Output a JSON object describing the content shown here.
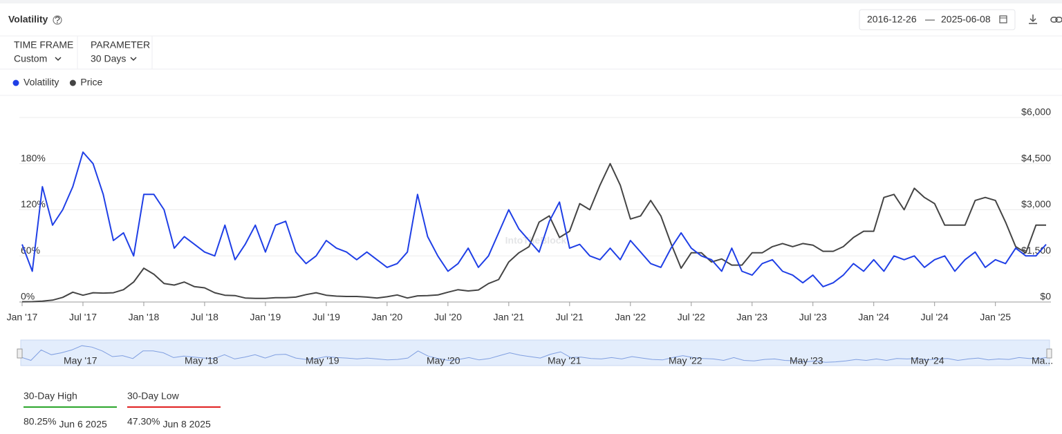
{
  "header": {
    "title": "Volatility",
    "date_from": "2016-12-26",
    "date_separator": "—",
    "date_to": "2025-06-08"
  },
  "controls": [
    {
      "label": "TIME FRAME",
      "value": "Custom"
    },
    {
      "label": "PARAMETER",
      "value": "30 Days"
    }
  ],
  "watermark": "IntoTheBlock",
  "chart_data": {
    "type": "line",
    "x": [
      "2017-01",
      "2017-02",
      "2017-03",
      "2017-04",
      "2017-05",
      "2017-06",
      "2017-07",
      "2017-08",
      "2017-09",
      "2017-10",
      "2017-11",
      "2017-12",
      "2018-01",
      "2018-02",
      "2018-03",
      "2018-04",
      "2018-05",
      "2018-06",
      "2018-07",
      "2018-08",
      "2018-09",
      "2018-10",
      "2018-11",
      "2018-12",
      "2019-01",
      "2019-02",
      "2019-03",
      "2019-04",
      "2019-05",
      "2019-06",
      "2019-07",
      "2019-08",
      "2019-09",
      "2019-10",
      "2019-11",
      "2019-12",
      "2020-01",
      "2020-02",
      "2020-03",
      "2020-04",
      "2020-05",
      "2020-06",
      "2020-07",
      "2020-08",
      "2020-09",
      "2020-10",
      "2020-11",
      "2020-12",
      "2021-01",
      "2021-02",
      "2021-03",
      "2021-04",
      "2021-05",
      "2021-06",
      "2021-07",
      "2021-08",
      "2021-09",
      "2021-10",
      "2021-11",
      "2021-12",
      "2022-01",
      "2022-02",
      "2022-03",
      "2022-04",
      "2022-05",
      "2022-06",
      "2022-07",
      "2022-08",
      "2022-09",
      "2022-10",
      "2022-11",
      "2022-12",
      "2023-01",
      "2023-02",
      "2023-03",
      "2023-04",
      "2023-05",
      "2023-06",
      "2023-07",
      "2023-08",
      "2023-09",
      "2023-10",
      "2023-11",
      "2023-12",
      "2024-01",
      "2024-02",
      "2024-03",
      "2024-04",
      "2024-05",
      "2024-06",
      "2024-07",
      "2024-08",
      "2024-09",
      "2024-10",
      "2024-11",
      "2024-12",
      "2025-01",
      "2025-02",
      "2025-03",
      "2025-04",
      "2025-05",
      "2025-06"
    ],
    "series": [
      {
        "name": "Volatility",
        "color": "#1f3fe6",
        "values": [
          75,
          40,
          150,
          100,
          120,
          150,
          195,
          180,
          140,
          80,
          90,
          60,
          140,
          140,
          120,
          70,
          85,
          75,
          65,
          60,
          100,
          55,
          75,
          100,
          65,
          100,
          105,
          65,
          50,
          60,
          80,
          70,
          65,
          55,
          65,
          55,
          45,
          50,
          65,
          140,
          85,
          60,
          40,
          50,
          70,
          45,
          60,
          90,
          120,
          95,
          80,
          65,
          105,
          130,
          70,
          75,
          60,
          55,
          70,
          55,
          80,
          65,
          50,
          45,
          70,
          90,
          70,
          60,
          55,
          40,
          70,
          40,
          35,
          50,
          55,
          40,
          35,
          25,
          35,
          20,
          25,
          35,
          50,
          40,
          55,
          40,
          60,
          55,
          60,
          45,
          55,
          60,
          40,
          55,
          65,
          45,
          55,
          50,
          70,
          60,
          60,
          75
        ]
      },
      {
        "name": "Price",
        "color": "#444444",
        "axis": "y2",
        "values": [
          8,
          12,
          30,
          60,
          150,
          320,
          220,
          300,
          290,
          300,
          400,
          650,
          1100,
          900,
          600,
          550,
          650,
          500,
          460,
          300,
          220,
          210,
          130,
          120,
          120,
          140,
          140,
          160,
          240,
          300,
          220,
          190,
          180,
          180,
          160,
          130,
          170,
          230,
          130,
          200,
          210,
          230,
          320,
          400,
          360,
          390,
          600,
          730,
          1300,
          1600,
          1800,
          2600,
          2800,
          2100,
          2300,
          3200,
          3000,
          3800,
          4500,
          3800,
          2700,
          2800,
          3300,
          2800,
          1900,
          1100,
          1600,
          1600,
          1300,
          1400,
          1200,
          1200,
          1600,
          1600,
          1800,
          1900,
          1800,
          1900,
          1850,
          1650,
          1650,
          1800,
          2100,
          2300,
          2300,
          3400,
          3500,
          3000,
          3700,
          3400,
          3200,
          2500,
          2500,
          2500,
          3300,
          3400,
          3300,
          2600,
          1800,
          1600,
          2500,
          2500
        ]
      }
    ],
    "xlim": [
      "2017-01",
      "2025-06"
    ],
    "xticks": [
      {
        "value": "2017-01",
        "label": "Jan '17"
      },
      {
        "value": "2017-07",
        "label": "Jul '17"
      },
      {
        "value": "2018-01",
        "label": "Jan '18"
      },
      {
        "value": "2018-07",
        "label": "Jul '18"
      },
      {
        "value": "2019-01",
        "label": "Jan '19"
      },
      {
        "value": "2019-07",
        "label": "Jul '19"
      },
      {
        "value": "2020-01",
        "label": "Jan '20"
      },
      {
        "value": "2020-07",
        "label": "Jul '20"
      },
      {
        "value": "2021-01",
        "label": "Jan '21"
      },
      {
        "value": "2021-07",
        "label": "Jul '21"
      },
      {
        "value": "2022-01",
        "label": "Jan '22"
      },
      {
        "value": "2022-07",
        "label": "Jul '22"
      },
      {
        "value": "2023-01",
        "label": "Jan '23"
      },
      {
        "value": "2023-07",
        "label": "Jul '23"
      },
      {
        "value": "2024-01",
        "label": "Jan '24"
      },
      {
        "value": "2024-07",
        "label": "Jul '24"
      },
      {
        "value": "2025-01",
        "label": "Jan '25"
      }
    ],
    "ylim": [
      0,
      240
    ],
    "yticks": [
      {
        "value": 0,
        "label": "0%"
      },
      {
        "value": 60,
        "label": "60%"
      },
      {
        "value": 120,
        "label": "120%"
      },
      {
        "value": 180,
        "label": "180%"
      }
    ],
    "y2lim": [
      0,
      6000
    ],
    "y2ticks": [
      {
        "value": 0,
        "label": "$0"
      },
      {
        "value": 1500,
        "label": "$1,500"
      },
      {
        "value": 3000,
        "label": "$3,000"
      },
      {
        "value": 4500,
        "label": "$4,500"
      },
      {
        "value": 6000,
        "label": "$6,000"
      }
    ],
    "grid": true
  },
  "navigator": {
    "labels": [
      "May '17",
      "May '18",
      "May '19",
      "May '20",
      "May '21",
      "May '22",
      "May '23",
      "May '24",
      "Ma..."
    ]
  },
  "stats": [
    {
      "label": "30-Day High",
      "value": "80.25%",
      "date": "Jun 6 2025",
      "color": "#2aa52a"
    },
    {
      "label": "30-Day Low",
      "value": "47.30%",
      "date": "Jun 8 2025",
      "color": "#e02020"
    }
  ]
}
